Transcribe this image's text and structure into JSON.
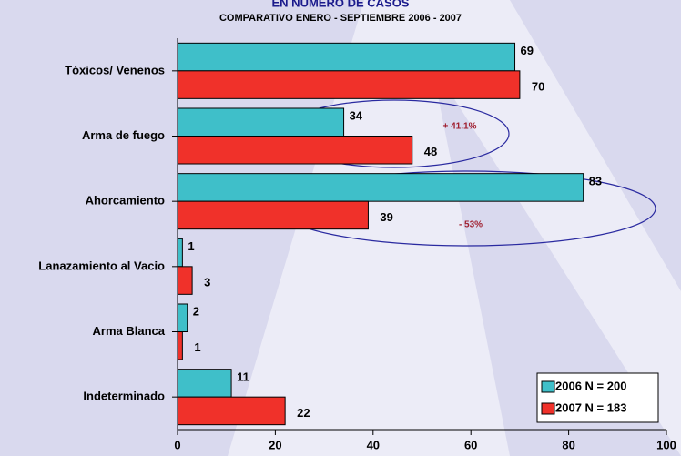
{
  "chart_data": {
    "type": "bar",
    "orientation": "horizontal",
    "title": "EN NÚMERO DE CASOS",
    "subtitle": "COMPARATIVO ENERO - SEPTIEMBRE 2006 - 2007",
    "categories": [
      "Tóxicos/ Venenos",
      "Arma de fuego",
      "Ahorcamiento",
      "Lanazamiento al Vacio",
      "Arma Blanca",
      "Indeterminado"
    ],
    "series": [
      {
        "name": "2006 N = 200",
        "color": "#3fbfc9",
        "values": [
          69,
          34,
          83,
          1,
          2,
          11
        ]
      },
      {
        "name": "2007 N = 183",
        "color": "#f0312a",
        "values": [
          70,
          48,
          39,
          3,
          1,
          22
        ]
      }
    ],
    "xlim": [
      0,
      100
    ],
    "xticks": [
      0,
      20,
      40,
      60,
      80,
      100
    ],
    "annotations": [
      "+ 41.1%",
      "- 53%"
    ],
    "legend": "lower right"
  }
}
